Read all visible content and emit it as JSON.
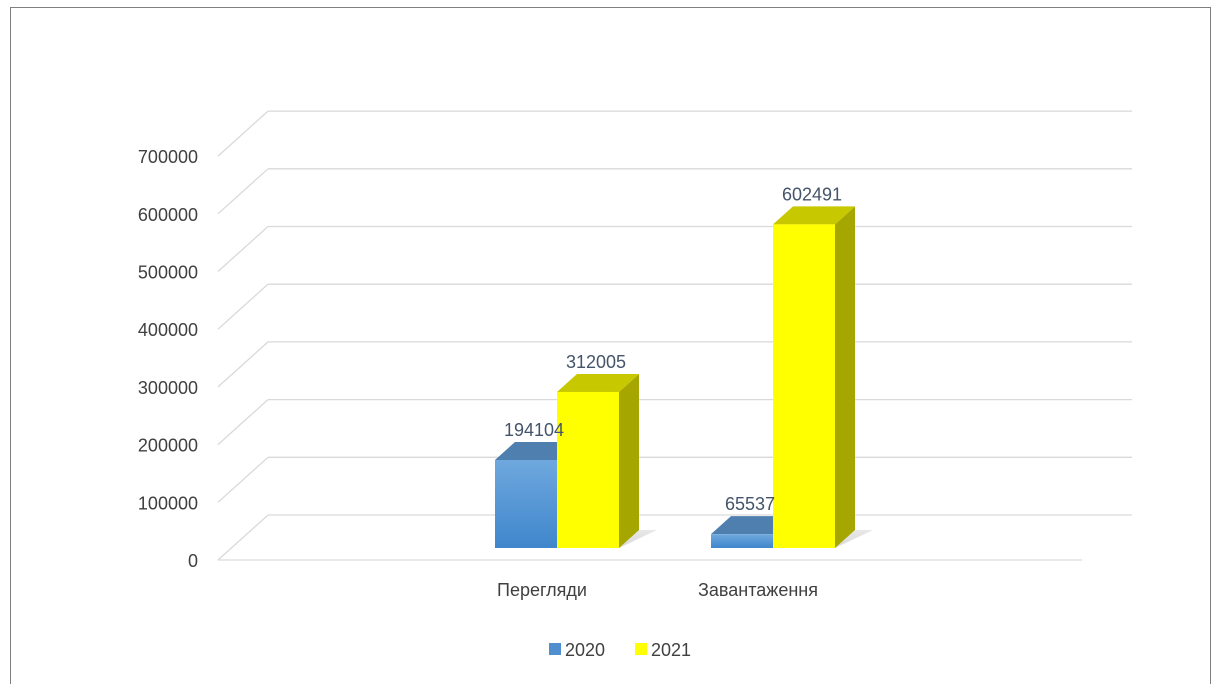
{
  "chart_data": {
    "type": "bar",
    "style": "3d-clustered-column",
    "categories": [
      "Перегляди",
      "Завантаження"
    ],
    "series": [
      {
        "name": "2020",
        "values": [
          194104,
          65537
        ],
        "color": "#5b9bd5"
      },
      {
        "name": "2021",
        "values": [
          312005,
          602491
        ],
        "color": "#ffff00"
      }
    ],
    "yticks": [
      "0",
      "100000",
      "200000",
      "300000",
      "400000",
      "500000",
      "600000",
      "700000"
    ],
    "ylim": [
      0,
      700000
    ],
    "grid": true,
    "legend_position": "bottom"
  }
}
